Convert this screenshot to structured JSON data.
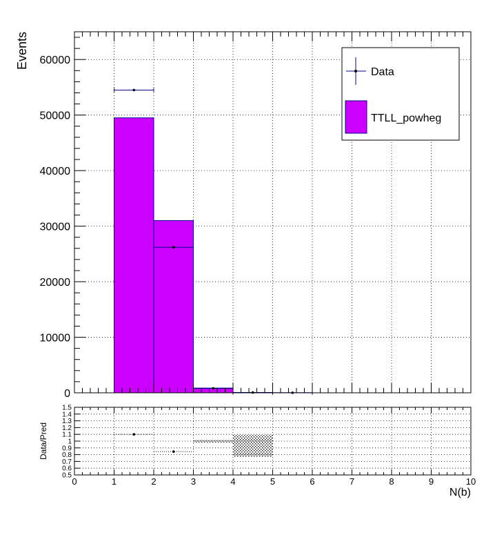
{
  "chart_data": [
    {
      "type": "bar",
      "panel": "main",
      "ylabel": "Events",
      "xlim": [
        0,
        10
      ],
      "ylim": [
        0,
        65000
      ],
      "y_ticks": [
        0,
        10000,
        20000,
        30000,
        40000,
        50000,
        60000
      ],
      "y_tick_labels": [
        "0",
        "10000",
        "20000",
        "30000",
        "40000",
        "50000",
        "60000"
      ],
      "grid": true,
      "legend_position": "top-right",
      "legend": {
        "data_label": "Data",
        "mc_label": "TTLL_powheg"
      },
      "mc_color": "#cc00ff",
      "data_color": "#00008b",
      "mc_bins": [
        {
          "x_low": 1,
          "x_high": 2,
          "value": 49500
        },
        {
          "x_low": 2,
          "x_high": 3,
          "value": 31000
        },
        {
          "x_low": 3,
          "x_high": 4,
          "value": 850
        },
        {
          "x_low": 4,
          "x_high": 5,
          "value": 60
        },
        {
          "x_low": 5,
          "x_high": 6,
          "value": 15
        }
      ],
      "data_points": [
        {
          "x": 1.5,
          "y": 54500,
          "xerr": 0.5
        },
        {
          "x": 2.5,
          "y": 26200,
          "xerr": 0.5
        },
        {
          "x": 3.5,
          "y": 800,
          "xerr": 0.5
        },
        {
          "x": 4.5,
          "y": 50,
          "xerr": 0.5
        },
        {
          "x": 5.5,
          "y": 12,
          "xerr": 0.5
        }
      ]
    },
    {
      "type": "scatter",
      "panel": "ratio",
      "xlabel": "N(b)",
      "ylabel": "Data/Pred",
      "xlim": [
        0,
        10
      ],
      "ylim": [
        0.5,
        1.5
      ],
      "x_ticks": [
        0,
        1,
        2,
        3,
        4,
        5,
        6,
        7,
        8,
        9,
        10
      ],
      "x_tick_labels": [
        "0",
        "1",
        "2",
        "3",
        "4",
        "5",
        "6",
        "7",
        "8",
        "9",
        "10"
      ],
      "y_ticks": [
        0.5,
        0.6,
        0.7,
        0.8,
        0.9,
        1,
        1.1,
        1.2,
        1.3,
        1.4,
        1.5
      ],
      "y_tick_labels": [
        "0.5",
        "0.6",
        "0.7",
        "0.8",
        "0.9",
        "1",
        "1.1",
        "1.2",
        "1.3",
        "1.4",
        "1.5"
      ],
      "grid": true,
      "ratio_points": [
        {
          "x": 1.5,
          "y": 1.1,
          "xerr": 0.5
        },
        {
          "x": 2.5,
          "y": 0.845,
          "xerr": 0.5
        }
      ],
      "uncertainty_bands": [
        {
          "x_low": 3,
          "x_high": 4,
          "y_low": 0.98,
          "y_high": 1.02
        },
        {
          "x_low": 4,
          "x_high": 5,
          "y_low": 0.77,
          "y_high": 1.09
        }
      ]
    }
  ]
}
